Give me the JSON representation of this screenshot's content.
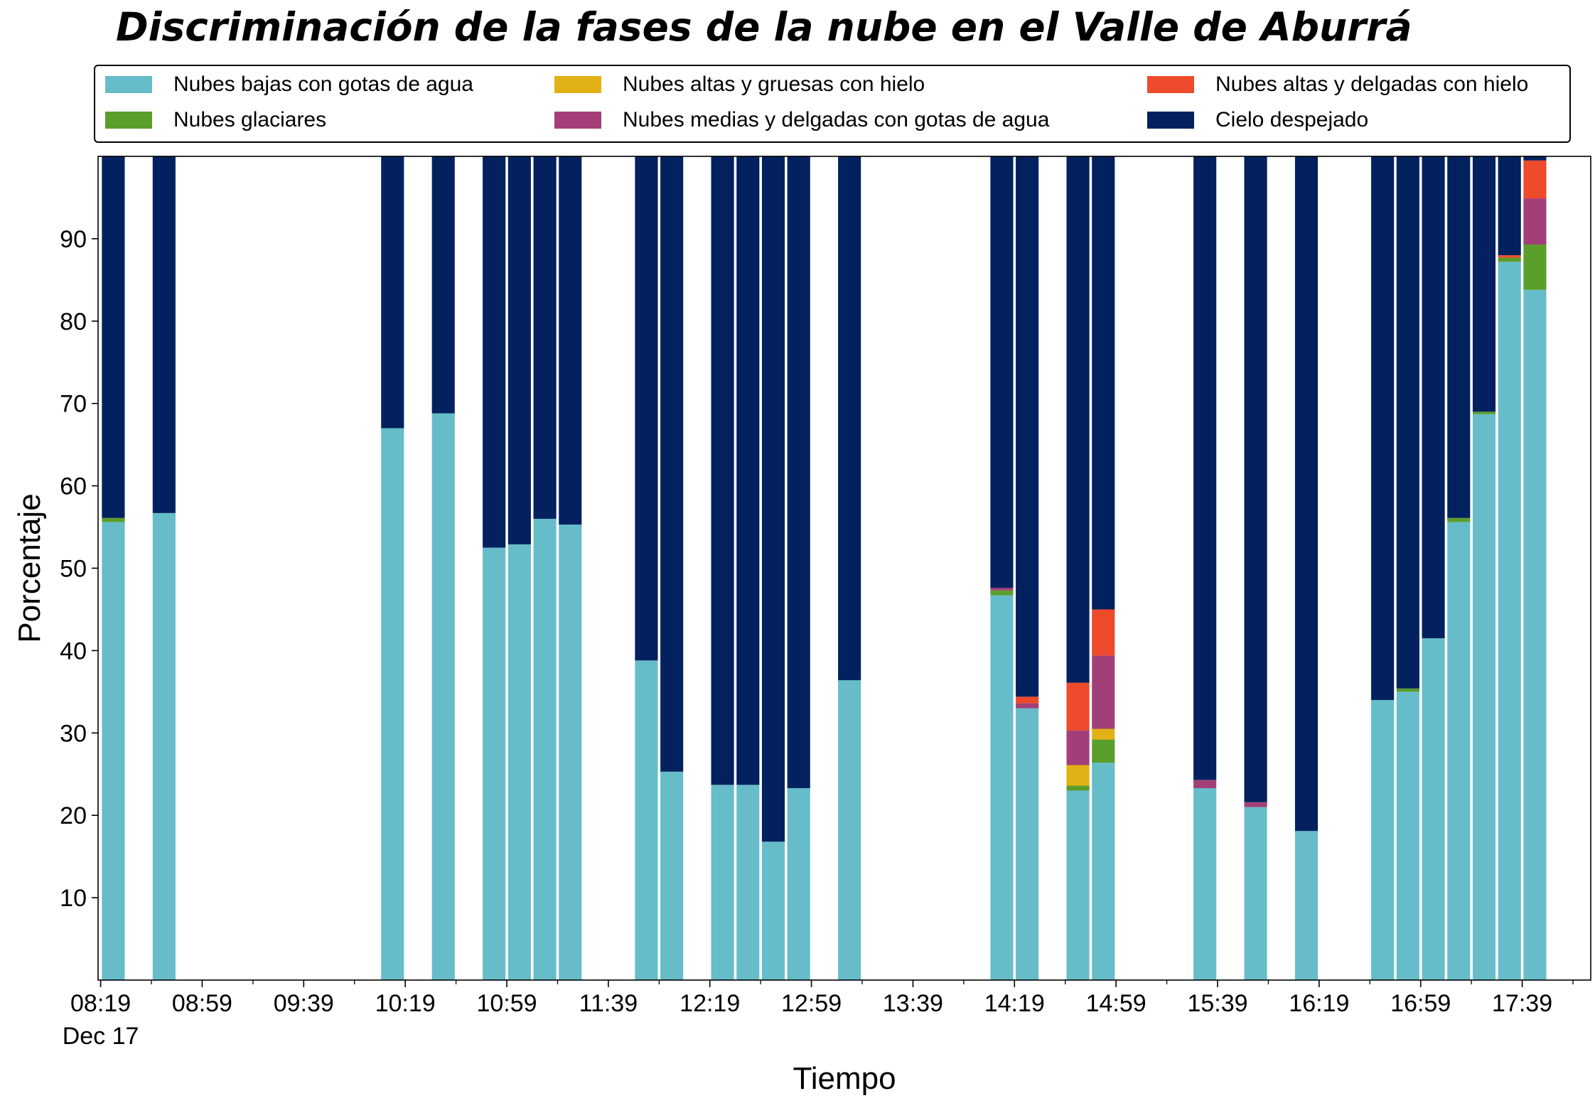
{
  "chart_data": {
    "type": "bar",
    "stacked": true,
    "title": "Discriminación de la fases de la nube en el Valle de Aburrá",
    "xlabel": "Tiempo",
    "ylabel": "Porcentaje",
    "ylim": [
      0,
      100
    ],
    "yticks": [
      10,
      20,
      30,
      40,
      50,
      60,
      70,
      80,
      90
    ],
    "xlim_minutes": [
      498,
      1086
    ],
    "xtick_labels": [
      "08:19",
      "08:59",
      "09:39",
      "10:19",
      "10:59",
      "11:39",
      "12:19",
      "12:59",
      "13:39",
      "14:19",
      "14:59",
      "15:39",
      "16:19",
      "16:59",
      "17:39"
    ],
    "xtick_sublabel": "Dec 17",
    "legend_position": "top",
    "grid": false,
    "x": [
      "08:19",
      "08:39",
      "10:09",
      "10:29",
      "10:49",
      "10:59",
      "11:09",
      "11:19",
      "11:49",
      "11:59",
      "12:19",
      "12:29",
      "12:39",
      "12:49",
      "13:09",
      "14:09",
      "14:19",
      "14:39",
      "14:49",
      "15:29",
      "15:49",
      "16:09",
      "16:39",
      "16:49",
      "16:59",
      "17:09",
      "17:19",
      "17:29",
      "17:39"
    ],
    "series": [
      {
        "name": "Nubes bajas con gotas de agua",
        "color": "#66bdc9",
        "values": [
          55.6,
          56.7,
          67.0,
          68.8,
          52.5,
          52.9,
          56.0,
          55.3,
          38.8,
          25.3,
          23.7,
          23.7,
          16.8,
          23.3,
          36.4,
          46.7,
          33.0,
          23.0,
          26.4,
          23.3,
          21.0,
          18.1,
          34.0,
          35.0,
          41.5,
          55.6,
          68.7,
          87.2,
          83.8
        ]
      },
      {
        "name": "Nubes glaciares",
        "color": "#5a9e2c",
        "values": [
          0.5,
          0,
          0,
          0,
          0,
          0,
          0,
          0,
          0,
          0,
          0,
          0,
          0,
          0,
          0,
          0.6,
          0,
          0.6,
          2.8,
          0,
          0,
          0,
          0,
          0.4,
          0,
          0.5,
          0.3,
          0.5,
          5.5
        ]
      },
      {
        "name": "Nubes altas y gruesas con hielo",
        "color": "#e2b116",
        "values": [
          0,
          0,
          0,
          0,
          0,
          0,
          0,
          0,
          0,
          0,
          0,
          0,
          0,
          0,
          0,
          0,
          0,
          2.5,
          1.3,
          0,
          0,
          0,
          0,
          0,
          0,
          0,
          0,
          0,
          0
        ]
      },
      {
        "name": "Nubes medias y delgadas con gotas de agua",
        "color": "#a33f78",
        "values": [
          0,
          0,
          0,
          0,
          0,
          0,
          0,
          0,
          0,
          0,
          0,
          0,
          0,
          0,
          0,
          0.3,
          0.6,
          4.2,
          8.9,
          1.0,
          0.6,
          0,
          0,
          0,
          0,
          0,
          0,
          0,
          5.6
        ]
      },
      {
        "name": "Nubes altas y delgadas con hielo",
        "color": "#ee4a2c",
        "values": [
          0,
          0,
          0,
          0,
          0,
          0,
          0,
          0,
          0,
          0,
          0,
          0,
          0,
          0,
          0,
          0,
          0.8,
          5.8,
          5.6,
          0,
          0,
          0,
          0,
          0,
          0,
          0,
          0,
          0.3,
          4.6
        ]
      },
      {
        "name": "Cielo despejado",
        "color": "#03215e",
        "values": [
          43.9,
          43.3,
          33.0,
          31.2,
          47.5,
          47.1,
          44.0,
          44.7,
          61.2,
          74.7,
          76.3,
          76.3,
          83.2,
          76.7,
          63.6,
          52.4,
          65.6,
          63.9,
          55.0,
          75.7,
          78.4,
          81.9,
          66.0,
          64.6,
          58.5,
          43.9,
          31.0,
          12.0,
          0.5
        ]
      }
    ]
  }
}
